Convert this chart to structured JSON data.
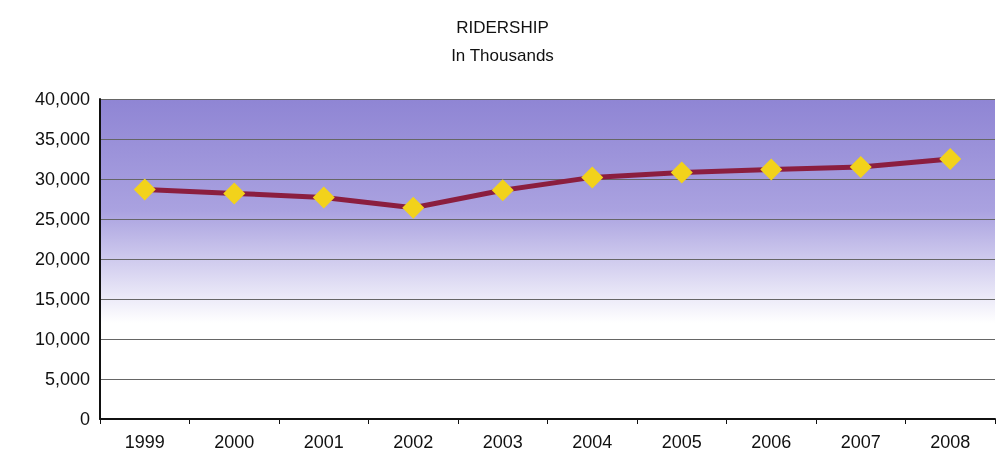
{
  "chart_data": {
    "type": "line",
    "title": "RIDERSHIP",
    "subtitle": "In Thousands",
    "categories": [
      "1999",
      "2000",
      "2001",
      "2002",
      "2003",
      "2004",
      "2005",
      "2006",
      "2007",
      "2008"
    ],
    "series": [
      {
        "color": "#8b1e3f",
        "values": [
          28700,
          28200,
          27700,
          26400,
          28600,
          30200,
          30800,
          31200,
          31500,
          32500
        ]
      }
    ],
    "ylim": [
      0,
      40000
    ],
    "yticks": [
      0,
      {
        "value": 5000,
        "label": "5,000"
      },
      {
        "value": 10000,
        "label": "10,000"
      },
      {
        "value": 15000,
        "label": "15,000"
      },
      {
        "value": 20000,
        "label": "20,000"
      },
      {
        "value": 25000,
        "label": "25,000"
      },
      {
        "value": 30000,
        "label": "30,000"
      },
      {
        "value": 35000,
        "label": "35,000"
      },
      {
        "value": 40000,
        "label": "40,000"
      }
    ],
    "grid": "y",
    "marker": "diamond",
    "line_style": "solid"
  }
}
